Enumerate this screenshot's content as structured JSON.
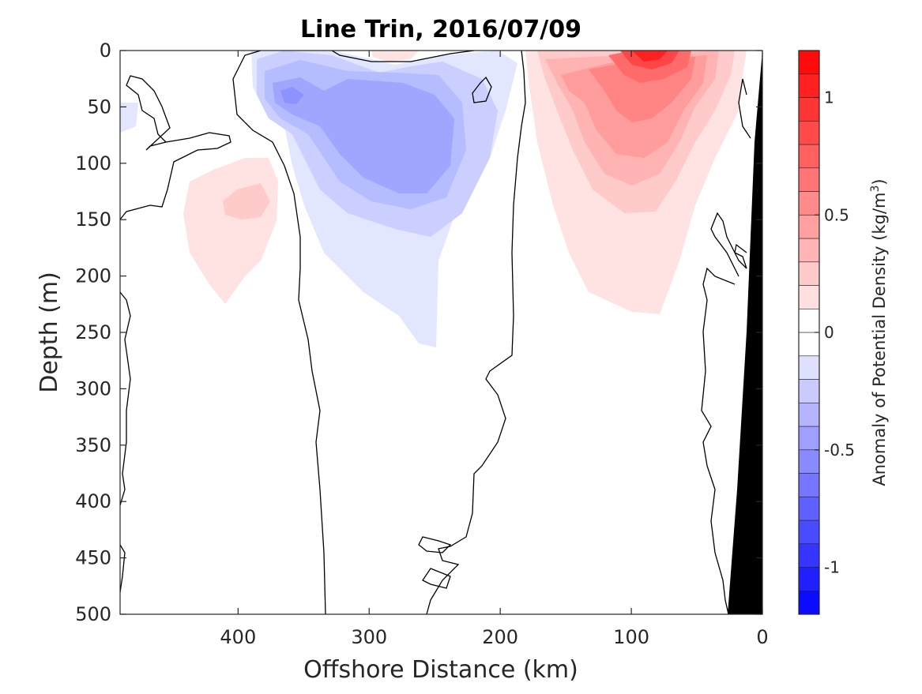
{
  "chart_data": {
    "type": "heatmap",
    "subtype": "filled-contour section",
    "title": "Line Trin, 2016/07/09",
    "xlabel": "Offshore Distance (km)",
    "ylabel": "Depth (m)",
    "xlim": [
      490,
      0
    ],
    "ylim": [
      0,
      500
    ],
    "x_direction": "reversed",
    "y_direction": "depth increases downward",
    "x_ticks": [
      400,
      300,
      200,
      100,
      0
    ],
    "x_tick_labels": [
      "400",
      "300",
      "200",
      "100",
      "0"
    ],
    "y_ticks": [
      0,
      50,
      100,
      150,
      200,
      250,
      300,
      350,
      400,
      450,
      500
    ],
    "y_tick_labels": [
      "0",
      "50",
      "100",
      "150",
      "200",
      "250",
      "300",
      "350",
      "400",
      "450",
      "500"
    ],
    "grid": false,
    "colorbar": {
      "label": "Anomaly of Potential Density (kg/m",
      "label_superscript": "3",
      "label_suffix": ")",
      "range": [
        -1.2,
        1.2
      ],
      "step": 0.1,
      "ticks": [
        1,
        0.5,
        0,
        -0.5,
        -1
      ],
      "tick_labels": [
        "1",
        "0.5",
        "0",
        "-0.5",
        "-1"
      ],
      "colormap": "blue-white-red",
      "color_negative_end": "#0000ff",
      "color_positive_end": "#ff0000",
      "color_zero": "#ffffff"
    },
    "features": [
      {
        "kind": "negative anomaly core",
        "x_km": 265,
        "depth_m": 80,
        "value": -0.5
      },
      {
        "kind": "negative anomaly minimum",
        "x_km": 362,
        "depth_m": 40,
        "value": -0.6
      },
      {
        "kind": "positive anomaly core",
        "x_km": 80,
        "depth_m": 5,
        "value": 1.1
      },
      {
        "kind": "positive anomaly subsurface",
        "x_km": 415,
        "depth_m": 135,
        "value": 0.3
      },
      {
        "kind": "continental slope / bottom (black)",
        "x_km_at_surface": 0,
        "x_km_at_500m": 26
      }
    ],
    "zero_contour_lines": "black lines mark the 0 kg/m^3 anomaly contour"
  }
}
